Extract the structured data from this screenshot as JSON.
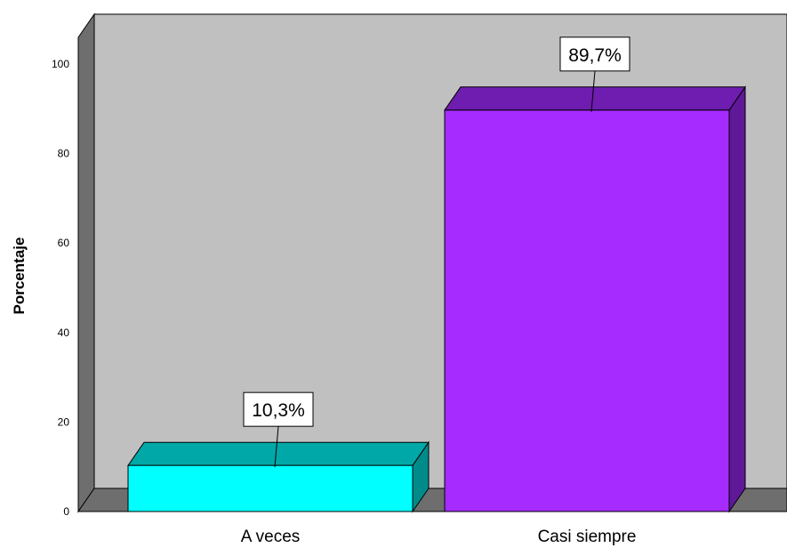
{
  "colors": {
    "wall": "#c0c0c0",
    "side_wall": "#6e6e6e",
    "floor": "#6e6e6e"
  },
  "chart_data": {
    "type": "bar",
    "three_d": true,
    "categories": [
      "A veces",
      "Casi siempre"
    ],
    "values": [
      10.3,
      89.7
    ],
    "data_labels": [
      "10,3%",
      "89,7%"
    ],
    "bar_colors": [
      {
        "front": "#00ffff",
        "top": "#00a8a8",
        "side": "#008b8b"
      },
      {
        "front": "#a52bff",
        "top": "#6f1cb0",
        "side": "#5e1898"
      }
    ],
    "ylabel": "Porcentaje",
    "ylim": [
      0,
      100
    ],
    "yticks": [
      0,
      20,
      40,
      60,
      80,
      100
    ],
    "grid": false,
    "legend": "none"
  }
}
